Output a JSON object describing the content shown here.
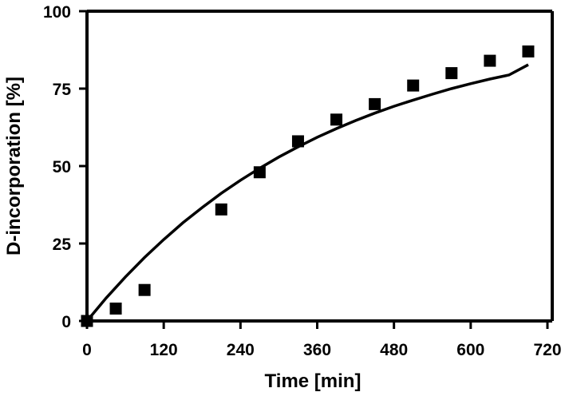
{
  "chart_data": {
    "type": "scatter",
    "xlabel": "Time [min]",
    "ylabel": "D-incorporation [%]",
    "xlim": [
      0,
      720
    ],
    "ylim": [
      0,
      100
    ],
    "xticks": [
      0,
      120,
      240,
      360,
      480,
      600,
      720
    ],
    "yticks": [
      0,
      25,
      50,
      75,
      100
    ],
    "grid": false,
    "series": [
      {
        "marker": "square",
        "color": "#000000",
        "x": [
          0,
          45,
          90,
          210,
          270,
          330,
          390,
          450,
          510,
          570,
          630,
          690
        ],
        "y": [
          0,
          4,
          10,
          36,
          48,
          58,
          65,
          70,
          76,
          80,
          84,
          87
        ]
      }
    ],
    "fit_curve": {
      "color": "#000000",
      "x": [
        0,
        30,
        60,
        90,
        120,
        150,
        180,
        210,
        240,
        270,
        300,
        330,
        360,
        390,
        420,
        450,
        480,
        510,
        540,
        570,
        600,
        630,
        660,
        690
      ],
      "y": [
        0,
        7.4,
        14.2,
        20.5,
        26.3,
        31.7,
        36.6,
        41.2,
        45.4,
        49.3,
        52.9,
        56.2,
        59.3,
        62.1,
        64.7,
        67.1,
        69.3,
        71.3,
        73.2,
        75.0,
        76.6,
        78.1,
        79.4,
        82.7
      ]
    }
  }
}
